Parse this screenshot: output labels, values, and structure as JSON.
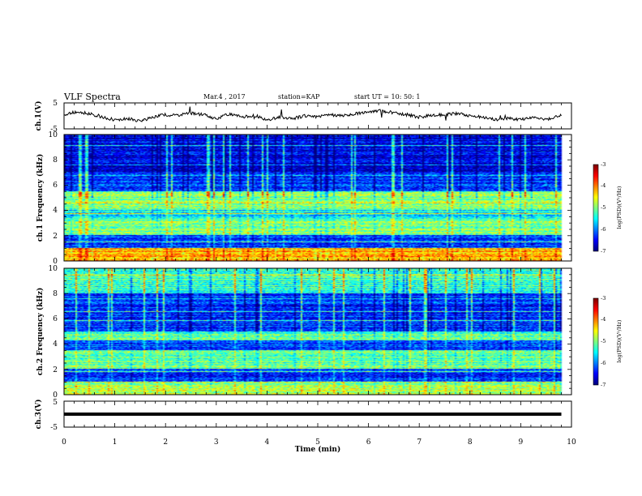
{
  "header": {
    "title": "VLF Spectra",
    "date": "Mar.4 , 2017",
    "station": "station=KAP",
    "start": "start UT =  10: 50: 1"
  },
  "colors": {
    "spectrogram_low": "#000090",
    "spectrogram_mid": "#00ff80",
    "spectrogram_high": "#a00000",
    "trace": "#000000"
  },
  "chart_data": [
    {
      "type": "line",
      "panel": "ch1-voltage",
      "ylabel": "ch.1(V)",
      "ylim": [
        -5,
        5
      ],
      "yticks": [
        "5",
        "-5"
      ],
      "xlim": [
        0,
        10
      ],
      "x": [
        0,
        0.25,
        0.5,
        0.75,
        1,
        1.25,
        1.5,
        1.75,
        2,
        2.25,
        2.5,
        2.75,
        3,
        3.25,
        3.5,
        3.75,
        4,
        4.25,
        4.5,
        4.75,
        5,
        5.25,
        5.5,
        5.75,
        6,
        6.25,
        6.5,
        6.75,
        7,
        7.25,
        7.5,
        7.75,
        8,
        8.25,
        8.5,
        8.75,
        9,
        9.25,
        9.5,
        9.8
      ],
      "y": [
        0.5,
        1.5,
        0.8,
        -0.5,
        -1.5,
        -1.0,
        -2.0,
        -0.5,
        0.5,
        0.2,
        1.0,
        0.5,
        -1.0,
        0.8,
        -0.5,
        0.2,
        -1.5,
        -0.5,
        -1.0,
        0.0,
        -0.5,
        0.5,
        0.0,
        0.8,
        1.5,
        2.0,
        1.2,
        0.5,
        -0.5,
        0.2,
        0.5,
        1.0,
        0.0,
        -0.5,
        -1.5,
        -0.8,
        -1.5,
        -0.5,
        -1.5,
        0.5
      ]
    },
    {
      "type": "heatmap",
      "panel": "ch1-spectrogram",
      "ylabel": "ch.1 Frequency (kHz)",
      "ylim": [
        0,
        10
      ],
      "yticks": [
        "0",
        "2",
        "4",
        "6",
        "8",
        "10"
      ],
      "xlim": [
        0,
        10
      ],
      "colorbar": {
        "label": "log(PSD)(V²/Hz)",
        "range": [
          -7,
          -3
        ],
        "ticks": [
          "-3",
          "-4",
          "-5",
          "-6",
          "-7"
        ]
      },
      "bands": [
        {
          "f": [
            0,
            1
          ],
          "level": -4.2
        },
        {
          "f": [
            1,
            2
          ],
          "level": -6.3
        },
        {
          "f": [
            2,
            3.3
          ],
          "level": -5.0
        },
        {
          "f": [
            3.3,
            4
          ],
          "level": -5.6
        },
        {
          "f": [
            4,
            5.5
          ],
          "level": -5.0
        },
        {
          "f": [
            5.5,
            7
          ],
          "level": -6.3
        },
        {
          "f": [
            7,
            10
          ],
          "level": -6.6
        }
      ]
    },
    {
      "type": "heatmap",
      "panel": "ch2-spectrogram",
      "ylabel": "ch.2 Frequency (kHz)",
      "ylim": [
        0,
        10
      ],
      "yticks": [
        "0",
        "2",
        "4",
        "6",
        "8",
        "10"
      ],
      "xlim": [
        0,
        10
      ],
      "colorbar": {
        "label": "log(PSD)(V²/Hz)",
        "range": [
          -7,
          -3
        ],
        "ticks": [
          "-3",
          "-4",
          "-5",
          "-6",
          "-7"
        ]
      },
      "bands": [
        {
          "f": [
            0,
            1
          ],
          "level": -4.8
        },
        {
          "f": [
            1,
            2
          ],
          "level": -6.3
        },
        {
          "f": [
            2,
            3.5
          ],
          "level": -5.1
        },
        {
          "f": [
            3.5,
            4.3
          ],
          "level": -6.2
        },
        {
          "f": [
            4.3,
            5
          ],
          "level": -5.2
        },
        {
          "f": [
            5,
            8
          ],
          "level": -6.3
        },
        {
          "f": [
            8,
            10
          ],
          "level": -5.3
        }
      ]
    },
    {
      "type": "line",
      "panel": "ch3-voltage",
      "ylabel": "ch.3(V)",
      "ylim": [
        -5,
        5
      ],
      "yticks": [
        "5",
        "-5"
      ],
      "xlim": [
        0,
        10
      ],
      "x": [
        0,
        9.8
      ],
      "y": [
        0,
        0
      ]
    }
  ],
  "xaxis": {
    "label": "Time (min)",
    "ticks": [
      "0",
      "1",
      "2",
      "3",
      "4",
      "5",
      "6",
      "7",
      "8",
      "9",
      "10"
    ]
  }
}
